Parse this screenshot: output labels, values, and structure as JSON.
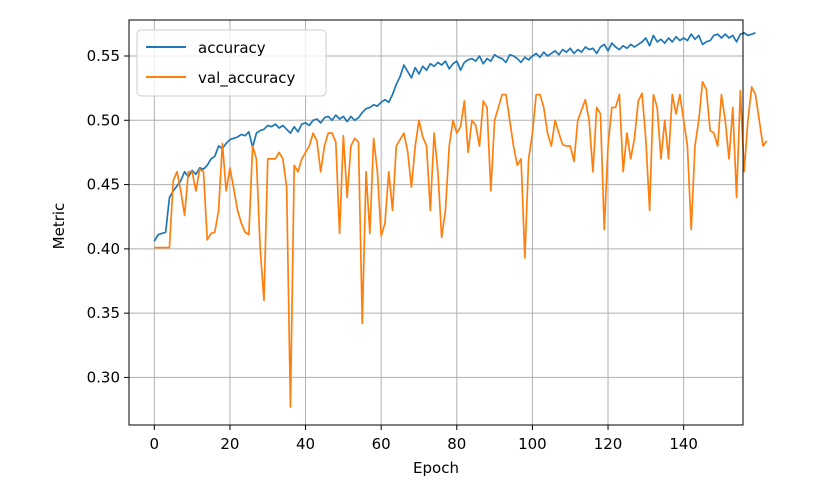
{
  "chart_data": {
    "type": "line",
    "title": "",
    "xlabel": "Epoch",
    "ylabel": "Metric",
    "xlim": [
      -6.7,
      155.7
    ],
    "ylim": [
      0.263,
      0.578
    ],
    "xticks": [
      0,
      20,
      40,
      60,
      80,
      100,
      120,
      140
    ],
    "xtick_labels": [
      "0",
      "20",
      "40",
      "60",
      "80",
      "100",
      "120",
      "140"
    ],
    "yticks": [
      0.3,
      0.35,
      0.4,
      0.45,
      0.5,
      0.55
    ],
    "ytick_labels": [
      "0.30",
      "0.35",
      "0.40",
      "0.45",
      "0.50",
      "0.55"
    ],
    "grid": true,
    "legend_position": "top-left",
    "colors": {
      "accuracy": "#1f77b4",
      "val_accuracy": "#ff7f0e",
      "grid": "#b0b0b0",
      "axes": "#000000"
    },
    "series": [
      {
        "name": "accuracy",
        "x_start": 0,
        "values": [
          0.406,
          0.411,
          0.412,
          0.413,
          0.44,
          0.445,
          0.449,
          0.453,
          0.46,
          0.456,
          0.461,
          0.458,
          0.463,
          0.462,
          0.465,
          0.47,
          0.472,
          0.48,
          0.478,
          0.482,
          0.485,
          0.486,
          0.487,
          0.489,
          0.488,
          0.491,
          0.479,
          0.49,
          0.492,
          0.493,
          0.496,
          0.495,
          0.497,
          0.494,
          0.496,
          0.493,
          0.49,
          0.495,
          0.491,
          0.497,
          0.498,
          0.496,
          0.5,
          0.501,
          0.498,
          0.502,
          0.503,
          0.5,
          0.504,
          0.501,
          0.503,
          0.499,
          0.503,
          0.5,
          0.502,
          0.506,
          0.509,
          0.51,
          0.512,
          0.511,
          0.514,
          0.516,
          0.514,
          0.52,
          0.528,
          0.534,
          0.543,
          0.538,
          0.533,
          0.541,
          0.536,
          0.542,
          0.539,
          0.544,
          0.542,
          0.545,
          0.543,
          0.546,
          0.54,
          0.544,
          0.546,
          0.539,
          0.545,
          0.547,
          0.548,
          0.546,
          0.55,
          0.544,
          0.548,
          0.546,
          0.551,
          0.549,
          0.548,
          0.545,
          0.551,
          0.55,
          0.548,
          0.545,
          0.549,
          0.547,
          0.55,
          0.552,
          0.549,
          0.553,
          0.55,
          0.552,
          0.554,
          0.551,
          0.555,
          0.553,
          0.556,
          0.552,
          0.555,
          0.553,
          0.557,
          0.555,
          0.556,
          0.552,
          0.557,
          0.559,
          0.554,
          0.56,
          0.557,
          0.555,
          0.558,
          0.556,
          0.559,
          0.557,
          0.559,
          0.561,
          0.564,
          0.558,
          0.566,
          0.561,
          0.563,
          0.56,
          0.564,
          0.561,
          0.565,
          0.562,
          0.564,
          0.562,
          0.567,
          0.563,
          0.566,
          0.559,
          0.561,
          0.562,
          0.566,
          0.567,
          0.564,
          0.567,
          0.564,
          0.566,
          0.561,
          0.567,
          0.568,
          0.566,
          0.567,
          0.568
        ]
      },
      {
        "name": "val_accuracy",
        "x_start": 0,
        "values": [
          0.401,
          0.401,
          0.401,
          0.401,
          0.401,
          0.453,
          0.46,
          0.445,
          0.426,
          0.46,
          0.46,
          0.445,
          0.462,
          0.46,
          0.407,
          0.412,
          0.413,
          0.43,
          0.482,
          0.445,
          0.463,
          0.447,
          0.43,
          0.42,
          0.413,
          0.411,
          0.48,
          0.47,
          0.4,
          0.36,
          0.47,
          0.47,
          0.47,
          0.475,
          0.47,
          0.448,
          0.277,
          0.465,
          0.46,
          0.47,
          0.475,
          0.48,
          0.49,
          0.484,
          0.46,
          0.48,
          0.49,
          0.49,
          0.483,
          0.412,
          0.488,
          0.44,
          0.48,
          0.486,
          0.483,
          0.342,
          0.46,
          0.412,
          0.486,
          0.46,
          0.41,
          0.42,
          0.46,
          0.43,
          0.48,
          0.485,
          0.49,
          0.476,
          0.448,
          0.48,
          0.5,
          0.487,
          0.48,
          0.43,
          0.49,
          0.46,
          0.409,
          0.43,
          0.48,
          0.5,
          0.49,
          0.495,
          0.515,
          0.475,
          0.5,
          0.496,
          0.48,
          0.515,
          0.51,
          0.445,
          0.5,
          0.51,
          0.52,
          0.52,
          0.5,
          0.48,
          0.465,
          0.47,
          0.393,
          0.47,
          0.49,
          0.52,
          0.52,
          0.51,
          0.49,
          0.48,
          0.5,
          0.49,
          0.481,
          0.48,
          0.48,
          0.468,
          0.5,
          0.508,
          0.516,
          0.5,
          0.46,
          0.51,
          0.505,
          0.415,
          0.48,
          0.51,
          0.51,
          0.52,
          0.46,
          0.49,
          0.47,
          0.486,
          0.515,
          0.521,
          0.485,
          0.43,
          0.52,
          0.51,
          0.47,
          0.5,
          0.47,
          0.52,
          0.505,
          0.52,
          0.5,
          0.48,
          0.415,
          0.48,
          0.5,
          0.53,
          0.524,
          0.492,
          0.49,
          0.48,
          0.52,
          0.5,
          0.47,
          0.51,
          0.44,
          0.523,
          0.46,
          0.5,
          0.526,
          0.52,
          0.5,
          0.48,
          0.484
        ]
      }
    ]
  }
}
